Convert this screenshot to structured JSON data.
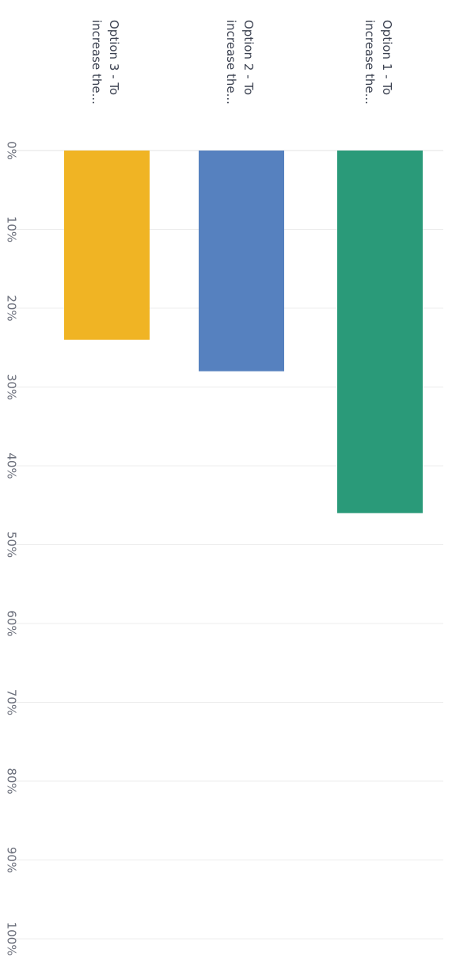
{
  "chart_data": {
    "type": "bar",
    "orientation": "horizontal",
    "rotated_view": "rotated 90 degrees clockwise",
    "categories": [
      [
        "Option 1 - To",
        "increase the..."
      ],
      [
        "Option 2 - To",
        "increase the..."
      ],
      [
        "Option 3 - To",
        "increase the..."
      ]
    ],
    "values": [
      46,
      28,
      24
    ],
    "colors": [
      "#2a9a79",
      "#5681bf",
      "#f0b424"
    ],
    "xlim": [
      0,
      100
    ],
    "ticks": [
      "0%",
      "10%",
      "20%",
      "30%",
      "40%",
      "50%",
      "60%",
      "70%",
      "80%",
      "90%",
      "100%"
    ],
    "grid": true,
    "title": "",
    "xlabel": "",
    "ylabel": ""
  }
}
